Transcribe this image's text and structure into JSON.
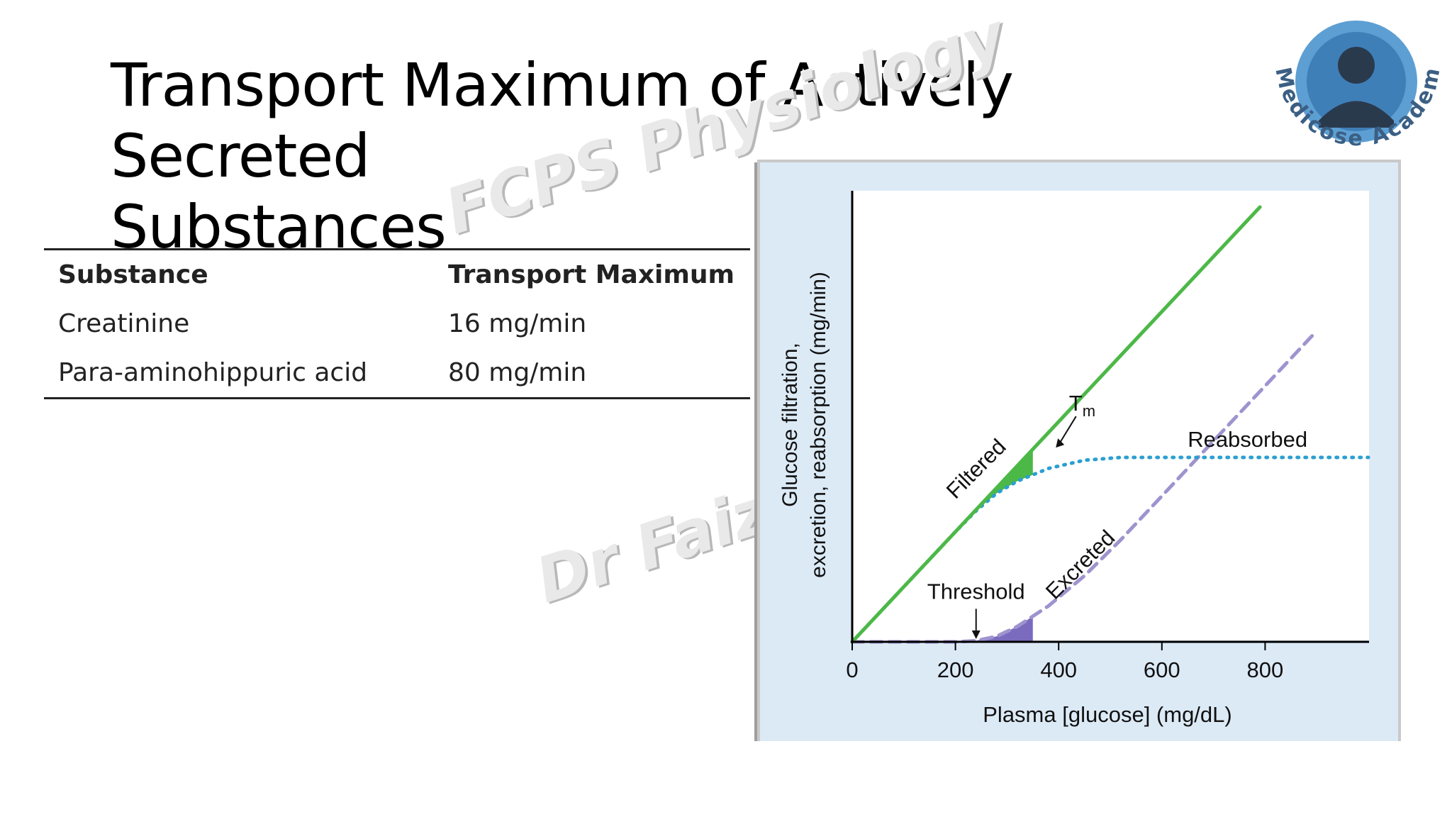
{
  "slide": {
    "title_line1": "Transport Maximum of Actively Secreted",
    "title_line2": "Substances",
    "watermark_1": "FCPS Physiology",
    "watermark_2": "Dr Faiza",
    "logo_text": "Medicose Academics"
  },
  "table": {
    "headers": [
      "Substance",
      "Transport Maximum"
    ],
    "rows": [
      [
        "Creatinine",
        "16 mg/min"
      ],
      [
        "Para-aminohippuric acid",
        "80 mg/min"
      ]
    ]
  },
  "chart_data": {
    "type": "line",
    "xlabel": "Plasma [glucose] (mg/dL)",
    "ylabel": "Glucose filtration, excretion, reabsorption (mg/min)",
    "xlim": [
      0,
      1000
    ],
    "x_ticks": [
      "0",
      "200",
      "400",
      "600",
      "800"
    ],
    "x_tick_values": [
      0,
      200,
      400,
      600,
      800
    ],
    "grid": false,
    "series": [
      {
        "name": "Filtered",
        "style": "solid",
        "color": "#4cb847",
        "x": [
          0,
          790
        ],
        "y": [
          0,
          790
        ]
      },
      {
        "name": "Reabsorbed",
        "style": "dotted",
        "color": "#2a9fd0",
        "x": [
          0,
          200,
          240,
          280,
          320,
          380,
          450,
          520,
          1000
        ],
        "y": [
          0,
          200,
          238,
          270,
          292,
          315,
          330,
          335,
          335
        ]
      },
      {
        "name": "Excreted",
        "style": "dashed",
        "color": "#9f93cf",
        "x": [
          0,
          200,
          240,
          280,
          320,
          380,
          450,
          520,
          900
        ],
        "y": [
          0,
          0,
          2,
          10,
          28,
          65,
          120,
          185,
          565
        ]
      }
    ],
    "annotations": [
      {
        "text": "Threshold",
        "x": 240
      },
      {
        "text": "T",
        "subscript": "m",
        "x": 420
      },
      {
        "text": "Filtered"
      },
      {
        "text": "Reabsorbed"
      },
      {
        "text": "Excreted"
      }
    ],
    "colors": {
      "filtered": "#4cb847",
      "reabsorbed": "#2a9fd0",
      "excreted": "#9f93cf",
      "panel_bg": "#dceaf6",
      "plot_bg": "#ffffff"
    }
  }
}
